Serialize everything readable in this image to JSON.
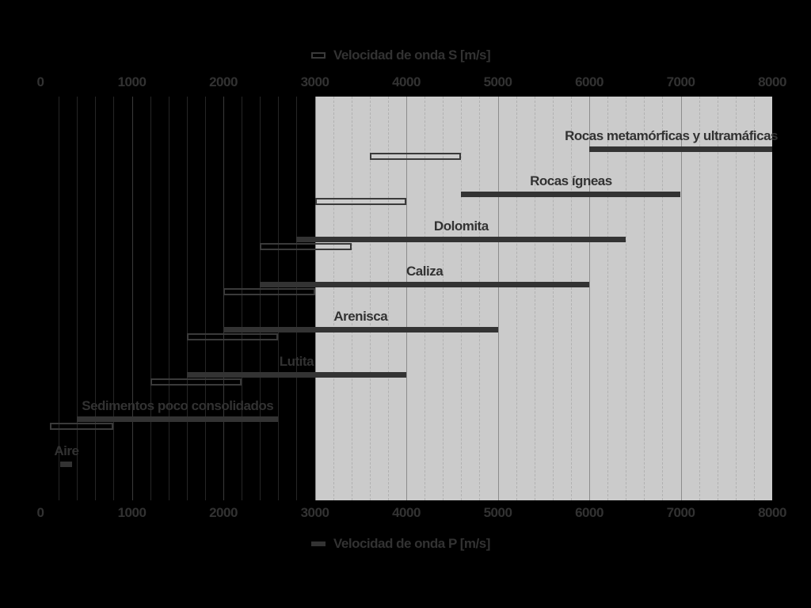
{
  "colors": {
    "background": "#000000",
    "shaded_band": "#cbcbcb",
    "p_bar_fill": "#333333",
    "s_bar_border": "#3a3a3a",
    "text": "#323232",
    "grid_minor_on_black": "#262626",
    "grid_major_on_black": "#3a3a3a",
    "grid_minor_on_band": "#b1b1b1",
    "grid_major_on_band": "#8c8c8c"
  },
  "chart_data": {
    "type": "bar",
    "subtype": "horizontal-range-bars",
    "title": "",
    "xlabel_top": "Velocidad de onda S [m/s]",
    "xlabel_bottom": "Velocidad de onda P [m/s]",
    "xlim": [
      0,
      8000
    ],
    "x_major_ticks": [
      0,
      1000,
      2000,
      3000,
      4000,
      5000,
      6000,
      7000,
      8000
    ],
    "x_tick_labels": [
      "0",
      "1000",
      "2000",
      "3000",
      "4000",
      "5000",
      "6000",
      "7000",
      "8000"
    ],
    "x_minor_grid_step": 200,
    "grid": "vertical-only",
    "axis_shown": "ticks on top and bottom, same scale",
    "shaded_span": {
      "from": 3000,
      "to": 8000
    },
    "legend_position": {
      "s_series": "top-center",
      "p_series": "bottom-center"
    },
    "categories": [
      "Rocas metamórficas y ultramáficas",
      "Rocas ígneas",
      "Dolomita",
      "Caliza",
      "Arenisca",
      "Lutita",
      "Sedimentos poco consolidados",
      "Aire"
    ],
    "series": [
      {
        "name": "Velocidad de onda S [m/s]",
        "marker_style": "outline",
        "ranges": [
          [
            3600,
            4600
          ],
          [
            3000,
            4000
          ],
          [
            2400,
            3400
          ],
          [
            2000,
            3000
          ],
          [
            1600,
            2600
          ],
          [
            1200,
            2200
          ],
          [
            100,
            800
          ],
          null
        ]
      },
      {
        "name": "Velocidad de onda P [m/s]",
        "marker_style": "filled",
        "ranges": [
          [
            6000,
            8000
          ],
          [
            4600,
            7000
          ],
          [
            2800,
            6400
          ],
          [
            2400,
            6000
          ],
          [
            2000,
            5000
          ],
          [
            1600,
            4000
          ],
          [
            400,
            2600
          ],
          [
            220,
            350
          ]
        ]
      }
    ]
  }
}
